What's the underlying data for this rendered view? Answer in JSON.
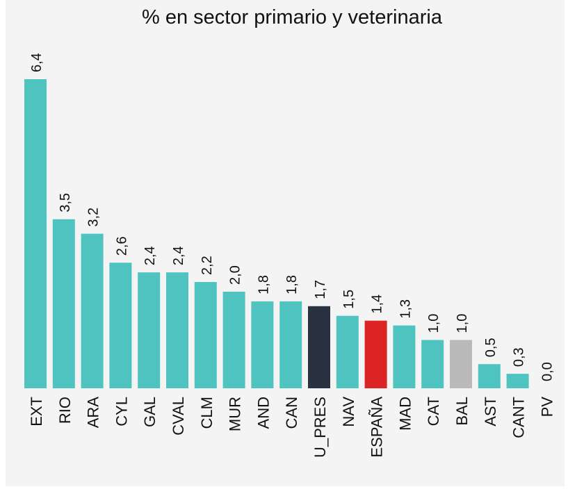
{
  "chart_data": {
    "type": "bar",
    "title": "% en sector primario y veterinaria",
    "categories": [
      "EXT",
      "RIO",
      "ARA",
      "CYL",
      "GAL",
      "CVAL",
      "CLM",
      "MUR",
      "AND",
      "CAN",
      "U_PRES",
      "NAV",
      "ESPAÑA",
      "MAD",
      "CAT",
      "BAL",
      "AST",
      "CANT",
      "PV"
    ],
    "values": [
      6.4,
      3.5,
      3.2,
      2.6,
      2.4,
      2.4,
      2.2,
      2.0,
      1.8,
      1.8,
      1.7,
      1.5,
      1.4,
      1.3,
      1.0,
      1.0,
      0.5,
      0.3,
      0.0
    ],
    "value_labels": [
      "6,4",
      "3,5",
      "3,2",
      "2,6",
      "2,4",
      "2,4",
      "2,2",
      "2,0",
      "1,8",
      "1,8",
      "1,7",
      "1,5",
      "1,4",
      "1,3",
      "1,0",
      "1,0",
      "0,5",
      "0,3",
      "0,0"
    ],
    "colors": [
      "#4fc3bf",
      "#4fc3bf",
      "#4fc3bf",
      "#4fc3bf",
      "#4fc3bf",
      "#4fc3bf",
      "#4fc3bf",
      "#4fc3bf",
      "#4fc3bf",
      "#4fc3bf",
      "#283241",
      "#4fc3bf",
      "#dc2424",
      "#4fc3bf",
      "#4fc3bf",
      "#b9b9b9",
      "#4fc3bf",
      "#4fc3bf",
      "#4fc3bf"
    ]
  }
}
